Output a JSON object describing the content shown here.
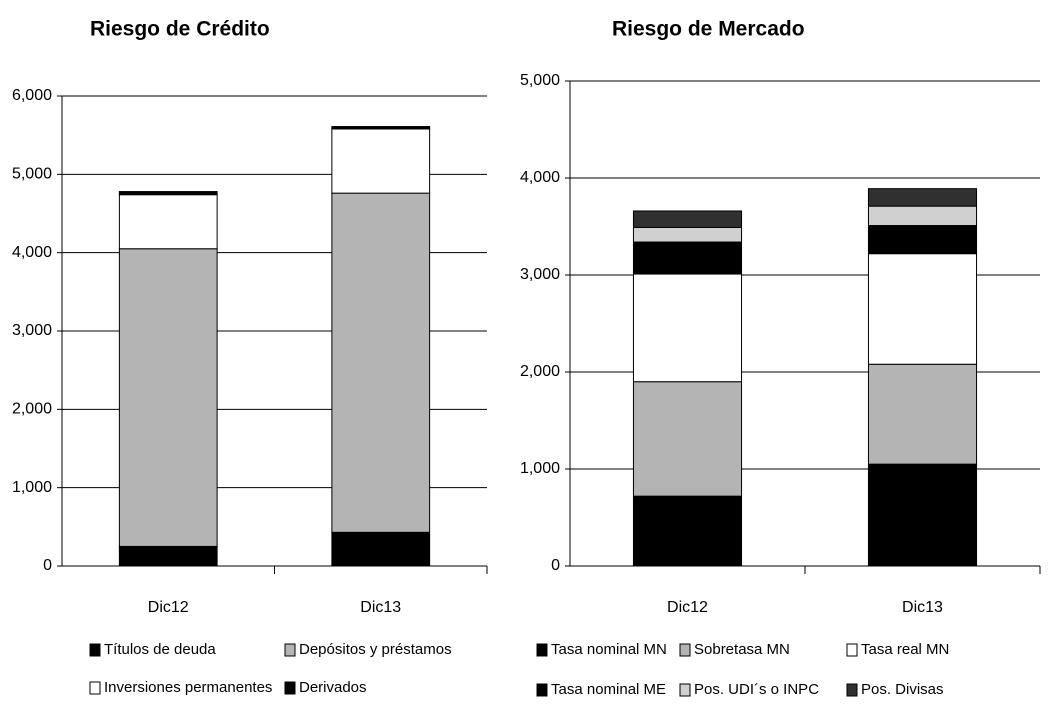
{
  "chart_data": [
    {
      "type": "bar",
      "stacked": true,
      "title": "Riesgo de Crédito",
      "categories": [
        "Dic12",
        "Dic13"
      ],
      "series": [
        {
          "name": "Títulos de deuda",
          "color": "#000000",
          "values": [
            250,
            430
          ]
        },
        {
          "name": "Depósitos y préstamos",
          "color": "#b4b4b4",
          "values": [
            3800,
            4330
          ]
        },
        {
          "name": "Inversiones permanentes",
          "color": "#ffffff",
          "values": [
            690,
            820
          ]
        },
        {
          "name": "Derivados",
          "color": "#000000",
          "values": [
            40,
            30
          ]
        }
      ],
      "ylim": [
        0,
        6000
      ],
      "yticks": [
        {
          "value": 0,
          "label": "0"
        },
        {
          "value": 1000,
          "label": "1,000"
        },
        {
          "value": 2000,
          "label": "2,000"
        },
        {
          "value": 3000,
          "label": "3,000"
        },
        {
          "value": 4000,
          "label": "4,000"
        },
        {
          "value": 5000,
          "label": "5,000"
        },
        {
          "value": 6000,
          "label": "6,000"
        }
      ],
      "grid": true
    },
    {
      "type": "bar",
      "stacked": true,
      "title": "Riesgo de Mercado",
      "categories": [
        "Dic12",
        "Dic13"
      ],
      "series": [
        {
          "name": "Tasa nominal MN",
          "color": "#000000",
          "values": [
            720,
            1050
          ]
        },
        {
          "name": "Sobretasa MN",
          "color": "#b4b4b4",
          "values": [
            1180,
            1030
          ]
        },
        {
          "name": "Tasa real MN",
          "color": "#ffffff",
          "values": [
            1110,
            1140
          ]
        },
        {
          "name": "Tasa nominal ME",
          "color": "#000000",
          "values": [
            330,
            290
          ]
        },
        {
          "name": "Pos. UDI´s o INPC",
          "color": "#d0d0d0",
          "values": [
            150,
            200
          ]
        },
        {
          "name": "Pos. Divisas",
          "color": "#303030",
          "values": [
            170,
            180
          ]
        }
      ],
      "ylim": [
        0,
        5000
      ],
      "yticks": [
        {
          "value": 0,
          "label": "0"
        },
        {
          "value": 1000,
          "label": "1,000"
        },
        {
          "value": 2000,
          "label": "2,000"
        },
        {
          "value": 3000,
          "label": "3,000"
        },
        {
          "value": 4000,
          "label": "4,000"
        },
        {
          "value": 5000,
          "label": "5,000"
        }
      ],
      "grid": true
    }
  ]
}
